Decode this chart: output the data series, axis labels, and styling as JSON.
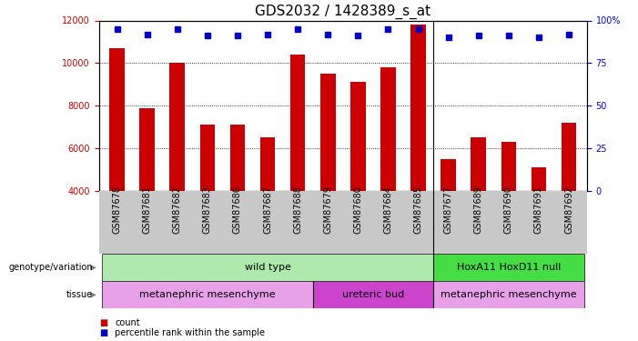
{
  "title": "GDS2032 / 1428389_s_at",
  "samples": [
    "GSM87678",
    "GSM87681",
    "GSM87682",
    "GSM87683",
    "GSM87686",
    "GSM87687",
    "GSM87688",
    "GSM87679",
    "GSM87680",
    "GSM87684",
    "GSM87685",
    "GSM87677",
    "GSM87689",
    "GSM87690",
    "GSM87691",
    "GSM87692"
  ],
  "counts": [
    10700,
    7900,
    10000,
    7100,
    7100,
    6500,
    10400,
    9500,
    9100,
    9800,
    11800,
    5500,
    6500,
    6300,
    5100,
    7200
  ],
  "percentile_ranks": [
    95,
    92,
    95,
    91,
    91,
    92,
    95,
    92,
    91,
    95,
    95,
    90,
    91,
    91,
    90,
    92
  ],
  "ymin": 4000,
  "ymax": 12000,
  "yticks": [
    4000,
    6000,
    8000,
    10000,
    12000
  ],
  "right_yticks": [
    0,
    25,
    50,
    75,
    100
  ],
  "bar_color": "#cc0000",
  "marker_color": "#0000cc",
  "xtick_bg_color": "#c8c8c8",
  "genotype_groups": [
    {
      "label": "wild type",
      "start": 0,
      "end": 11,
      "color": "#aeeaae"
    },
    {
      "label": "HoxA11 HoxD11 null",
      "start": 11,
      "end": 16,
      "color": "#44dd44"
    }
  ],
  "tissue_groups": [
    {
      "label": "metanephric mesenchyme",
      "start": 0,
      "end": 7,
      "color": "#e8a0e8"
    },
    {
      "label": "ureteric bud",
      "start": 7,
      "end": 11,
      "color": "#cc44cc"
    },
    {
      "label": "metanephric mesenchyme",
      "start": 11,
      "end": 16,
      "color": "#e8a0e8"
    }
  ],
  "legend_count_color": "#cc0000",
  "legend_marker_color": "#0000cc",
  "title_fontsize": 11,
  "tick_label_fontsize": 7,
  "group_label_fontsize": 8,
  "bar_width": 0.5
}
